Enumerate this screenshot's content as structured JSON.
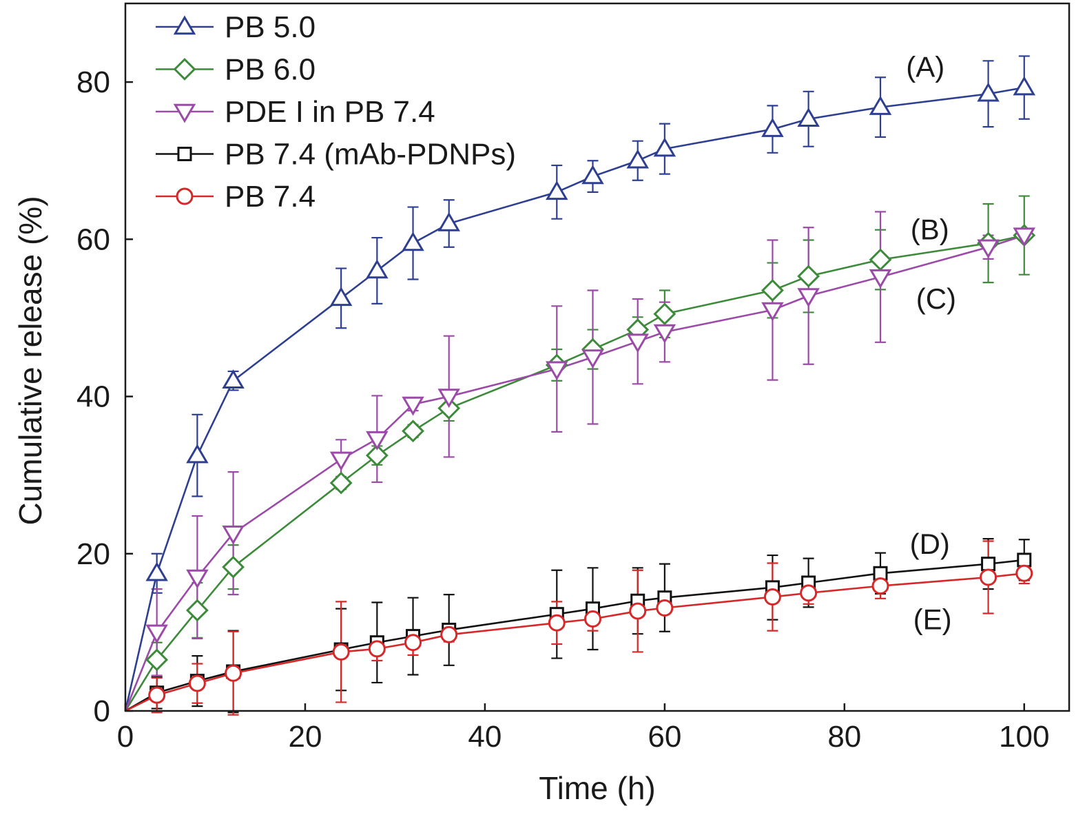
{
  "chart_data": {
    "type": "line",
    "title": "",
    "xlabel": "Time (h)",
    "ylabel": "Cumulative release (%)",
    "xlim": [
      0,
      105
    ],
    "ylim": [
      0,
      90
    ],
    "xticks": [
      0,
      20,
      40,
      60,
      80,
      100
    ],
    "yticks": [
      0,
      20,
      40,
      60,
      80
    ],
    "grid": false,
    "legend_position": "top-left",
    "series": [
      {
        "name": "PB 5.0",
        "color": "#2e3f92",
        "marker": "triangle-up",
        "x": [
          0,
          3.5,
          8,
          12,
          24,
          28,
          32,
          36,
          48,
          52,
          57,
          60,
          72,
          76,
          84,
          96,
          100
        ],
        "y": [
          0,
          17.5,
          32.5,
          42,
          52.5,
          56,
          59.5,
          62,
          66,
          68,
          70,
          71.5,
          74,
          75.3,
          76.8,
          78.5,
          79.3
        ],
        "err": [
          0,
          2.5,
          5.2,
          1.2,
          3.8,
          4.2,
          4.6,
          3.0,
          3.4,
          2.0,
          2.5,
          3.2,
          3.0,
          3.5,
          3.8,
          4.2,
          4.0
        ]
      },
      {
        "name": "PB 6.0",
        "color": "#3d8a3a",
        "marker": "diamond",
        "x": [
          0,
          3.5,
          8,
          12,
          24,
          28,
          32,
          36,
          48,
          52,
          57,
          60,
          72,
          76,
          84,
          96,
          100
        ],
        "y": [
          0,
          6.5,
          12.8,
          18.3,
          29,
          32.5,
          35.6,
          38.5,
          44,
          46,
          48.5,
          50.5,
          53.5,
          55.3,
          57.4,
          59.5,
          60.5
        ],
        "err": [
          0,
          2.2,
          3.5,
          2.8,
          0.8,
          1.2,
          0.8,
          1.6,
          2.0,
          2.5,
          1.6,
          3.0,
          3.5,
          4.6,
          3.8,
          5.0,
          5.0
        ]
      },
      {
        "name": "PDE I in PB 7.4",
        "color": "#9b4aa8",
        "marker": "triangle-down",
        "x": [
          0,
          3.5,
          8,
          12,
          24,
          28,
          32,
          36,
          48,
          52,
          57,
          60,
          72,
          76,
          84,
          96,
          100
        ],
        "y": [
          0,
          10,
          17,
          22.6,
          32,
          34.6,
          39,
          40,
          43.5,
          45,
          47,
          48.2,
          51,
          52.8,
          55.2,
          59,
          60.5
        ],
        "err": [
          0,
          5.5,
          7.8,
          7.8,
          2.5,
          5.5,
          0.8,
          7.7,
          8.0,
          8.5,
          5.4,
          3.8,
          8.9,
          8.7,
          8.3,
          1.5,
          0.5
        ]
      },
      {
        "name": "PB 7.4 (mAb-PDNPs)",
        "color": "#111111",
        "marker": "square",
        "x": [
          0,
          3.5,
          8,
          12,
          24,
          28,
          32,
          36,
          48,
          52,
          57,
          60,
          72,
          76,
          84,
          96,
          100
        ],
        "y": [
          0,
          2.3,
          3.8,
          5,
          7.8,
          8.7,
          9.5,
          10.3,
          12.3,
          13,
          14,
          14.4,
          15.7,
          16.3,
          17.5,
          18.7,
          19.2
        ],
        "err": [
          0,
          2.0,
          3.2,
          5.2,
          5.2,
          5.1,
          4.9,
          4.5,
          5.6,
          5.2,
          4.2,
          4.3,
          4.1,
          3.1,
          2.6,
          3.2,
          2.6
        ]
      },
      {
        "name": "PB 7.4",
        "color": "#d62828",
        "marker": "circle",
        "x": [
          0,
          3.5,
          8,
          12,
          24,
          28,
          32,
          36,
          48,
          52,
          57,
          60,
          72,
          76,
          84,
          96,
          100
        ],
        "y": [
          0,
          2.0,
          3.5,
          4.8,
          7.5,
          7.9,
          8.7,
          9.7,
          11.2,
          11.7,
          12.7,
          13.1,
          14.5,
          15,
          15.9,
          17,
          17.5
        ],
        "err": [
          0,
          2.2,
          2.5,
          5.3,
          6.4,
          1.5,
          1.6,
          0.9,
          2.7,
          1.5,
          5.2,
          0.5,
          4.3,
          1.4,
          1.6,
          4.6,
          1.3
        ]
      }
    ],
    "annotations": [
      {
        "text": "(A)",
        "x": 89,
        "y": 82
      },
      {
        "text": "(B)",
        "x": 89.5,
        "y": 61.3
      },
      {
        "text": "(C)",
        "x": 90.2,
        "y": 52.5
      },
      {
        "text": "(D)",
        "x": 89.5,
        "y": 21.3
      },
      {
        "text": "(E)",
        "x": 89.8,
        "y": 11.7
      }
    ]
  }
}
